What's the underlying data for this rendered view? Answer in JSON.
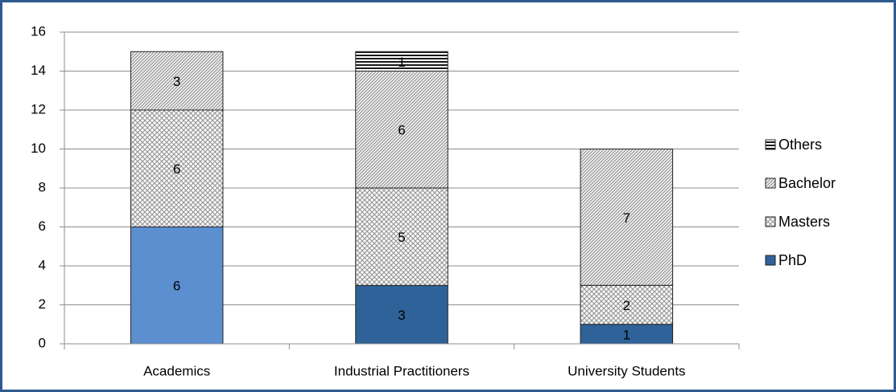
{
  "chart_data": {
    "type": "stacked_bar",
    "categories": [
      "Academics",
      "Industrial Practitioners",
      "University Students"
    ],
    "series": [
      {
        "name": "PhD",
        "color": "#2f6299",
        "colors": [
          "#5b8fd0",
          "#2f6299",
          "#2f6299"
        ],
        "pattern": null,
        "values": [
          6,
          3,
          1
        ]
      },
      {
        "name": "Masters",
        "color": "#707070",
        "pattern": "crosshatch",
        "values": [
          6,
          5,
          2
        ]
      },
      {
        "name": "Bachelor",
        "color": "#707070",
        "pattern": "diagonal",
        "values": [
          3,
          6,
          7
        ]
      },
      {
        "name": "Others",
        "color": "#000000",
        "pattern": "horizontal",
        "values": [
          null,
          1,
          null
        ]
      }
    ],
    "ylim": [
      0,
      16
    ],
    "yticks": [
      0,
      2,
      4,
      6,
      8,
      10,
      12,
      14,
      16
    ],
    "grid": true,
    "legend": "right"
  }
}
